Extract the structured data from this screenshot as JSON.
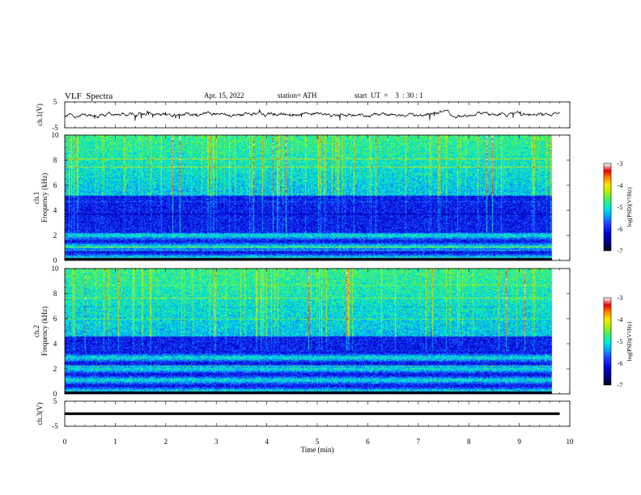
{
  "header": {
    "title": "VLF  Spectra",
    "date": "Apr. 15, 2022",
    "station": "station= ATH",
    "start_ut": "start  UT  =    3  : 30 : 1"
  },
  "colors": {
    "trace": "#000000",
    "frame": "#000000",
    "colormap": [
      "#000000",
      "#00007a",
      "#0000d6",
      "#1c46ff",
      "#00b4ff",
      "#00f0d0",
      "#3cf06e",
      "#b4f000",
      "#ffe600",
      "#ff7800",
      "#e80000",
      "#ffffff"
    ]
  },
  "chart_data": [
    {
      "type": "line",
      "panel": "ch1-waveform",
      "ylabel": "ch.1(V)",
      "ylim": [
        -5,
        5
      ],
      "yticks": [
        "5",
        "-5"
      ],
      "xlim": [
        0,
        10
      ],
      "series": [
        {
          "values_description_free": true,
          "baseline": 0,
          "noise_amplitude": 0.5,
          "x_end": 9.8
        }
      ]
    },
    {
      "type": "heatmap",
      "panel": "ch1-spectrogram",
      "ylabel": "Frequency  (kHz)",
      "channel_label": "ch.1",
      "ylim": [
        0,
        10
      ],
      "yticks": [
        "0",
        "2",
        "4",
        "6",
        "8",
        "10"
      ],
      "xlim": [
        0,
        9.8
      ],
      "colorbar": {
        "label": "log(PSD)(V²/Hz)",
        "range": [
          -7,
          -3
        ],
        "ticks": [
          "-3",
          "-4",
          "-5",
          "-6",
          "-7"
        ]
      },
      "dark_band_khz": [
        2.2,
        5.2
      ],
      "bright_band_khz": [
        5.2,
        10
      ],
      "bottom_band_khz": [
        0,
        2.2
      ]
    },
    {
      "type": "heatmap",
      "panel": "ch2-spectrogram",
      "ylabel": "Frequency  (kHz)",
      "channel_label": "ch.2",
      "ylim": [
        0,
        10
      ],
      "yticks": [
        "0",
        "2",
        "4",
        "6",
        "8",
        "10"
      ],
      "xlim": [
        0,
        9.8
      ],
      "colorbar": {
        "label": "log(PSD)(V²/Hz)",
        "range": [
          -7,
          -3
        ],
        "ticks": [
          "-3",
          "-4",
          "-5",
          "-6",
          "-7"
        ]
      },
      "dark_band_khz": [
        3.5,
        4.6
      ],
      "bright_band_khz": [
        4.6,
        10
      ],
      "bottom_band_khz": [
        0,
        3.5
      ]
    },
    {
      "type": "line",
      "panel": "ch3-waveform",
      "ylabel": "ch.3(V)",
      "ylim": [
        -5,
        5
      ],
      "yticks": [
        "5",
        "-5"
      ],
      "xlim": [
        0,
        10
      ],
      "series": [
        {
          "baseline": 0,
          "x_end": 9.8
        }
      ]
    }
  ],
  "xaxis": {
    "label": "Time  (min)",
    "ticks": [
      "0",
      "1",
      "2",
      "3",
      "4",
      "5",
      "6",
      "7",
      "8",
      "9",
      "10"
    ],
    "range": [
      0,
      10
    ]
  }
}
